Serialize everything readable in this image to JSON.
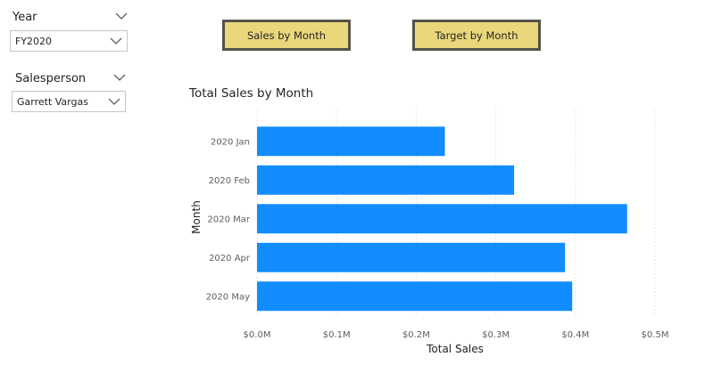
{
  "slicers": {
    "year": {
      "label": "Year",
      "value": "FY2020"
    },
    "salesperson": {
      "label": "Salesperson",
      "value": "Garrett Vargas"
    }
  },
  "buttons": {
    "sales_by_month": "Sales by Month",
    "target_by_month": "Target by Month"
  },
  "colors": {
    "bar": "#118dff",
    "button_fill": "#ead77c",
    "button_border": "#555248",
    "gridline": "#e1dfdd"
  },
  "chart_data": {
    "type": "bar",
    "orientation": "horizontal",
    "title": "Total Sales by Month",
    "xlabel": "Total Sales",
    "ylabel": "Month",
    "categories": [
      "2020 Jan",
      "2020 Feb",
      "2020 Mar",
      "2020 Apr",
      "2020 May"
    ],
    "values": [
      0.236,
      0.323,
      0.465,
      0.387,
      0.396
    ],
    "xlim": [
      0,
      0.5
    ],
    "xticks": [
      0,
      0.1,
      0.2,
      0.3,
      0.4,
      0.5
    ],
    "xtick_labels": [
      "$0.0M",
      "$0.1M",
      "$0.2M",
      "$0.3M",
      "$0.4M",
      "$0.5M"
    ],
    "grid": true
  }
}
